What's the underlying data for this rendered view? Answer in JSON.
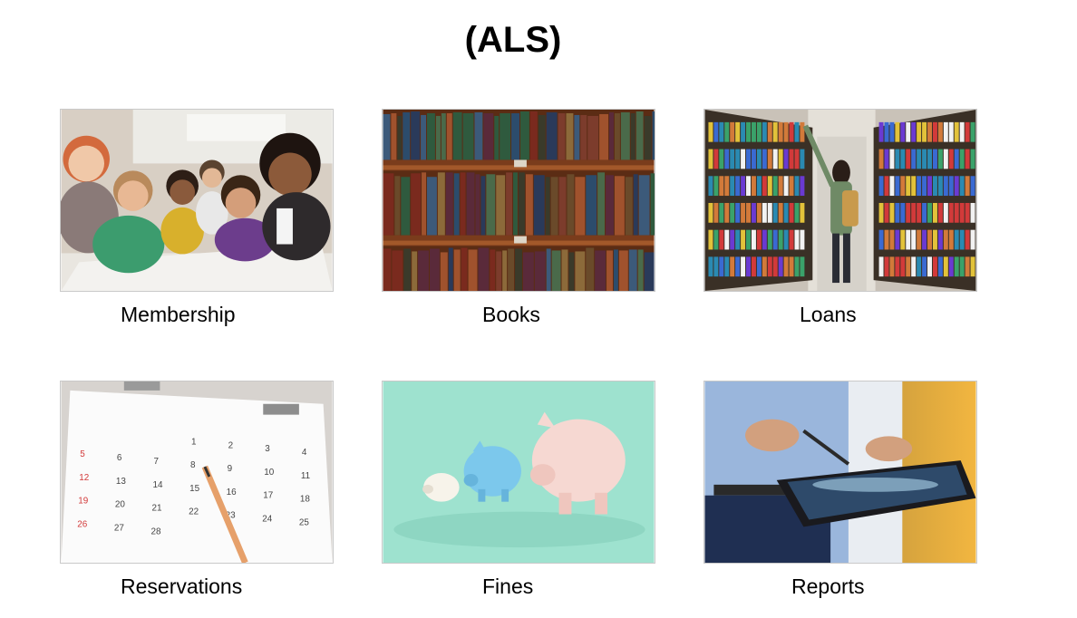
{
  "page": {
    "title": "(ALS)"
  },
  "tiles": [
    {
      "id": "membership",
      "label": "Membership",
      "image": "group-of-people-image"
    },
    {
      "id": "books",
      "label": "Books",
      "image": "bookshelf-image"
    },
    {
      "id": "loans",
      "label": "Loans",
      "image": "library-aisle-image"
    },
    {
      "id": "reservations",
      "label": "Reservations",
      "image": "calendar-image"
    },
    {
      "id": "fines",
      "label": "Fines",
      "image": "piggy-bank-image"
    },
    {
      "id": "reports",
      "label": "Reports",
      "image": "tablet-report-image"
    }
  ],
  "calendar_numbers": [
    "1",
    "2",
    "3",
    "4",
    "5",
    "6",
    "7",
    "8",
    "9",
    "10",
    "11",
    "12",
    "13",
    "14",
    "15",
    "16",
    "17",
    "18",
    "19",
    "20",
    "21",
    "22",
    "23",
    "24",
    "25",
    "26",
    "27",
    "28"
  ]
}
